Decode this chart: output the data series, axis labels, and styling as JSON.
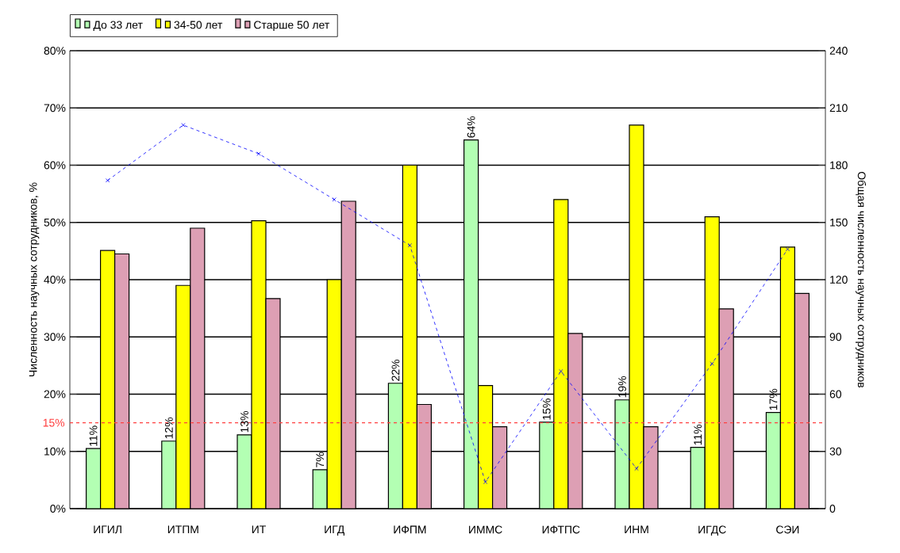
{
  "chart_data": {
    "type": "bar",
    "categories": [
      "ИГИЛ",
      "ИТПМ",
      "ИТ",
      "ИГД",
      "ИФПМ",
      "ИММС",
      "ИФТПС",
      "ИНМ",
      "ИГДС",
      "СЭИ"
    ],
    "series": [
      {
        "name": "До 33 лет",
        "color": "#b3ffb3",
        "values": [
          10.5,
          11.8,
          12.9,
          6.8,
          21.9,
          64.4,
          15.1,
          19.0,
          10.7,
          16.8
        ],
        "value_labels": [
          "11%",
          "12%",
          "13%",
          "7%",
          "22%",
          "64%",
          "15%",
          "19%",
          "11%",
          "17%"
        ]
      },
      {
        "name": "34-50 лет",
        "color": "#ffff00",
        "values": [
          45.1,
          39,
          50.3,
          40,
          60,
          21.5,
          54,
          67,
          51,
          45.7
        ]
      },
      {
        "name": "Старше 50 лет",
        "color": "#dd9fb4",
        "values": [
          44.5,
          49,
          36.7,
          53.7,
          18.2,
          14.3,
          30.6,
          14.3,
          34.9,
          37.6
        ]
      },
      {
        "type": "line",
        "axis": "y2",
        "color": "#0000ff",
        "marker": "cross",
        "line_style": "dashed",
        "values": [
          172,
          201,
          186,
          162,
          138,
          14,
          72,
          21,
          76,
          136
        ]
      }
    ],
    "ylabel": "Численность научных сотрудников, %",
    "y2label": "Общая численность научных сотрудников",
    "ylim": [
      0,
      80
    ],
    "yticks": [
      {
        "value": 0,
        "label": "0%"
      },
      {
        "value": 10,
        "label": "10%"
      },
      {
        "value": 20,
        "label": "20%"
      },
      {
        "value": 30,
        "label": "30%"
      },
      {
        "value": 40,
        "label": "40%"
      },
      {
        "value": 50,
        "label": "50%"
      },
      {
        "value": 60,
        "label": "60%"
      },
      {
        "value": 70,
        "label": "70%"
      },
      {
        "value": 80,
        "label": "80%"
      }
    ],
    "y2lim": [
      0,
      240
    ],
    "y2ticks": [
      0,
      30,
      60,
      90,
      120,
      150,
      180,
      210,
      240
    ],
    "ref_lines": [
      {
        "axis": "y",
        "value": 15,
        "label": "15%",
        "color": "#ff4040",
        "line_style": "dashed"
      }
    ],
    "grid": "y",
    "legend": "top left"
  }
}
